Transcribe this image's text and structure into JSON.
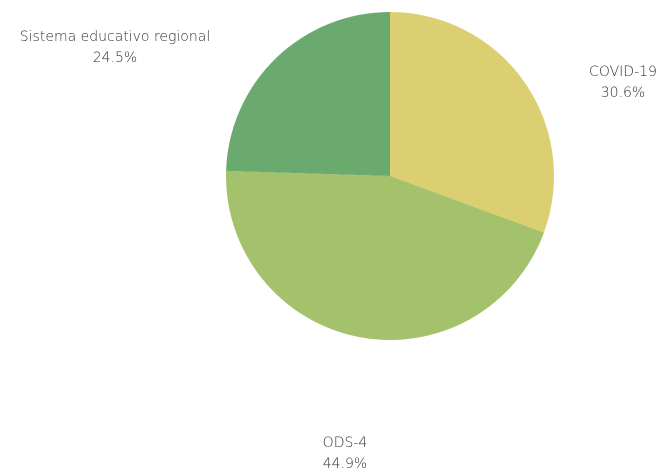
{
  "chart_data": {
    "type": "pie",
    "categories": [
      "COVID-19",
      "ODS-4",
      "Sistema educativo regional"
    ],
    "values": [
      30.6,
      44.9,
      24.5
    ],
    "value_labels": [
      "30.6%",
      "44.9%",
      "24.5%"
    ],
    "colors": [
      "#dccf72",
      "#a4c16c",
      "#6aaa6e"
    ]
  }
}
